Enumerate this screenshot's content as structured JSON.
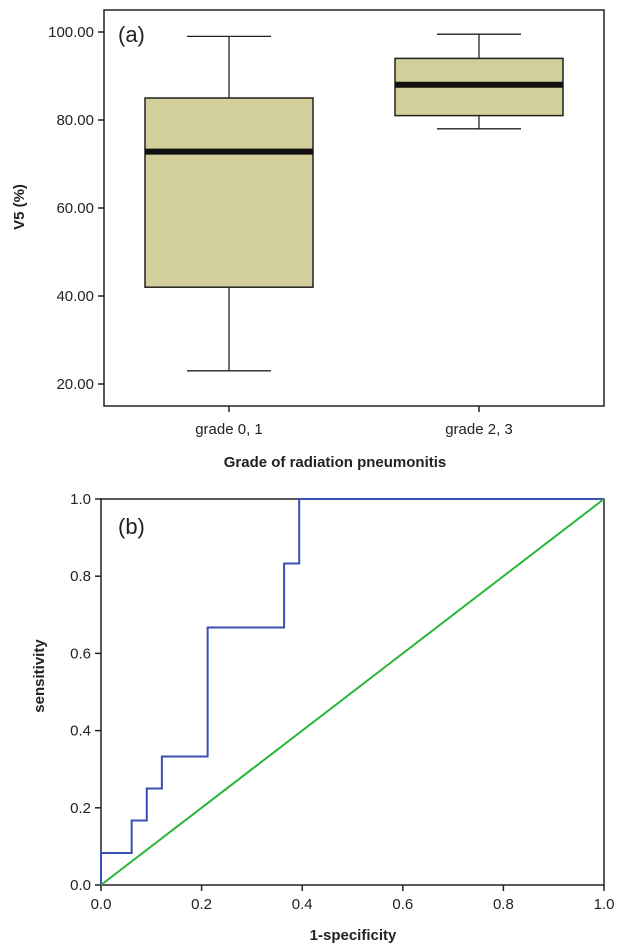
{
  "chart_data": [
    {
      "type": "box",
      "panel_label": "(a)",
      "xlabel": "Grade of radiation pneumonitis",
      "ylabel": "V5 (%)",
      "ylim": [
        15,
        105
      ],
      "yticks": [
        "20.00",
        "40.00",
        "60.00",
        "80.00",
        "100.00"
      ],
      "yticks_values": [
        20,
        40,
        60,
        80,
        100
      ],
      "grid": false,
      "box_color": "#d3cf9a",
      "categories": [
        "grade 0, 1",
        "grade 2, 3"
      ],
      "boxes": [
        {
          "category": "grade 0, 1",
          "min": 23,
          "q1": 42,
          "median": 72.8,
          "q3": 85,
          "max": 99
        },
        {
          "category": "grade 2, 3",
          "min": 78,
          "q1": 81,
          "median": 88,
          "q3": 94,
          "max": 99.5
        }
      ]
    },
    {
      "type": "line",
      "panel_label": "(b)",
      "xlabel": "1-specificity",
      "ylabel": "sensitivity",
      "xlim": [
        0,
        1
      ],
      "ylim": [
        0,
        1
      ],
      "xticks": [
        "0.0",
        "0.2",
        "0.4",
        "0.6",
        "0.8",
        "1.0"
      ],
      "xticks_values": [
        0,
        0.2,
        0.4,
        0.6,
        0.8,
        1.0
      ],
      "yticks": [
        "0.0",
        "0.2",
        "0.4",
        "0.6",
        "0.8",
        "1.0"
      ],
      "yticks_values": [
        0,
        0.2,
        0.4,
        0.6,
        0.8,
        1.0
      ],
      "grid": false,
      "series": [
        {
          "color": "#3a4fb5",
          "x": [
            0,
            0,
            0.061,
            0.061,
            0.091,
            0.091,
            0.121,
            0.121,
            0.212,
            0.212,
            0.364,
            0.364,
            0.394,
            0.394,
            1.0
          ],
          "y": [
            0,
            0.083,
            0.083,
            0.167,
            0.167,
            0.25,
            0.25,
            0.333,
            0.333,
            0.667,
            0.667,
            0.833,
            0.833,
            1.0,
            1.0
          ]
        },
        {
          "color": "#2ab53a",
          "x": [
            0,
            1
          ],
          "y": [
            0,
            1
          ]
        }
      ]
    }
  ]
}
